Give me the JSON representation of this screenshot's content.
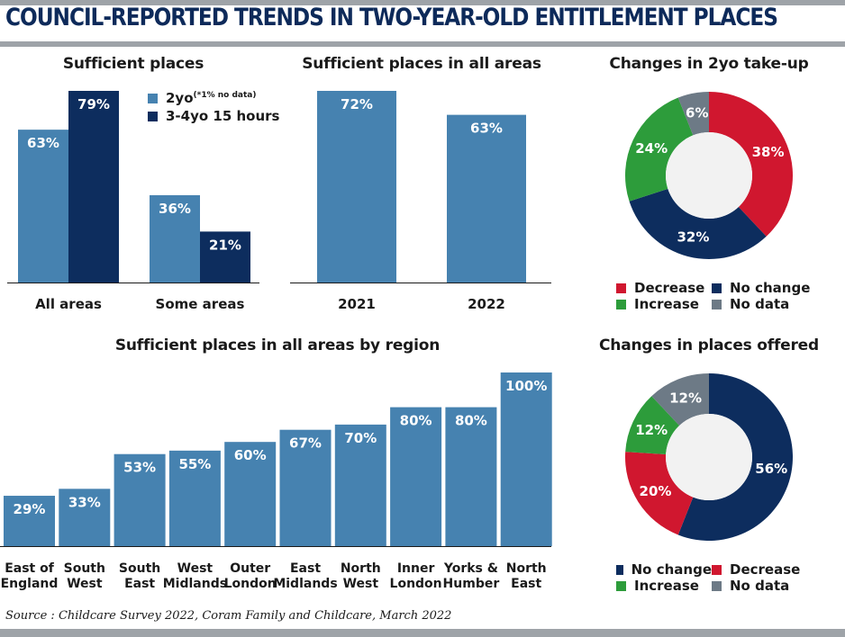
{
  "title": "COUNCIL-REPORTED TRENDS IN TWO-YEAR-OLD ENTITLEMENT PLACES",
  "source": "Source : Childcare Survey 2022, Coram Family and Childcare, March 2022",
  "colors": {
    "light_blue": "#4682b0",
    "navy": "#0d2d5e",
    "red": "#d0172f",
    "green": "#2d9c3b",
    "grey": "#6d7a86",
    "rule": "#9ea3a8"
  },
  "legends": {
    "sufficient": [
      {
        "label": "2yo",
        "note": "(*1% no data)",
        "color": "#4682b0"
      },
      {
        "label": "3-4yo 15 hours",
        "color": "#0d2d5e"
      }
    ]
  },
  "chart_data": [
    {
      "id": "sufficient-places",
      "type": "bar",
      "title": "Sufficient places",
      "categories": [
        "All areas",
        "Some areas"
      ],
      "series": [
        {
          "name": "2yo",
          "values": [
            63,
            36
          ],
          "labels": [
            "63%",
            "36%"
          ],
          "color": "#4682b0"
        },
        {
          "name": "3-4yo 15 hours",
          "values": [
            79,
            21
          ],
          "labels": [
            "79%",
            "21%"
          ],
          "color": "#0d2d5e"
        }
      ],
      "ylim": [
        0,
        79
      ]
    },
    {
      "id": "sufficient-all-areas",
      "type": "bar",
      "title": "Sufficient places in all areas",
      "categories": [
        "2021",
        "2022"
      ],
      "values": [
        72,
        63
      ],
      "labels": [
        "72%",
        "63%"
      ],
      "ylim": [
        0,
        72
      ]
    },
    {
      "id": "takeup-donut",
      "type": "pie",
      "title": "Changes in 2yo take-up",
      "slices": [
        {
          "name": "Decrease",
          "value": 38,
          "label": "38%",
          "color": "#d0172f"
        },
        {
          "name": "No change",
          "value": 32,
          "label": "32%",
          "color": "#0d2d5e"
        },
        {
          "name": "Increase",
          "value": 24,
          "label": "24%",
          "color": "#2d9c3b"
        },
        {
          "name": "No data",
          "value": 6,
          "label": "6%",
          "color": "#6d7a86"
        }
      ],
      "legend": [
        [
          {
            "name": "Decrease",
            "color": "#d0172f"
          },
          {
            "name": "No change",
            "color": "#0d2d5e"
          }
        ],
        [
          {
            "name": "Increase",
            "color": "#2d9c3b"
          },
          {
            "name": "No data",
            "color": "#6d7a86"
          }
        ]
      ]
    },
    {
      "id": "region",
      "type": "bar",
      "title": "Sufficient places in all areas by region",
      "categories": [
        [
          "East of",
          "England"
        ],
        [
          "South",
          "West"
        ],
        [
          "South",
          "East"
        ],
        [
          "West",
          "Midlands"
        ],
        [
          "Outer",
          "London"
        ],
        [
          "East",
          "Midlands"
        ],
        [
          "North",
          "West"
        ],
        [
          "Inner",
          "London"
        ],
        [
          "Yorks &",
          "Humber"
        ],
        [
          "North",
          "East"
        ]
      ],
      "values": [
        29,
        33,
        53,
        55,
        60,
        67,
        70,
        80,
        80,
        100
      ],
      "labels": [
        "29%",
        "33%",
        "53%",
        "55%",
        "60%",
        "67%",
        "70%",
        "80%",
        "80%",
        "100%"
      ],
      "ylim": [
        0,
        100
      ]
    },
    {
      "id": "places-donut",
      "type": "pie",
      "title": "Changes in places offered",
      "slices": [
        {
          "name": "No change",
          "value": 56,
          "label": "56%",
          "color": "#0d2d5e"
        },
        {
          "name": "Decrease",
          "value": 20,
          "label": "20%",
          "color": "#d0172f"
        },
        {
          "name": "Increase",
          "value": 12,
          "label": "12%",
          "color": "#2d9c3b"
        },
        {
          "name": "No data",
          "value": 12,
          "label": "12%",
          "color": "#6d7a86"
        }
      ],
      "legend": [
        [
          {
            "name": "No change",
            "color": "#0d2d5e"
          },
          {
            "name": "Decrease",
            "color": "#d0172f"
          }
        ],
        [
          {
            "name": "Increase",
            "color": "#2d9c3b"
          },
          {
            "name": "No data",
            "color": "#6d7a86"
          }
        ]
      ]
    }
  ]
}
